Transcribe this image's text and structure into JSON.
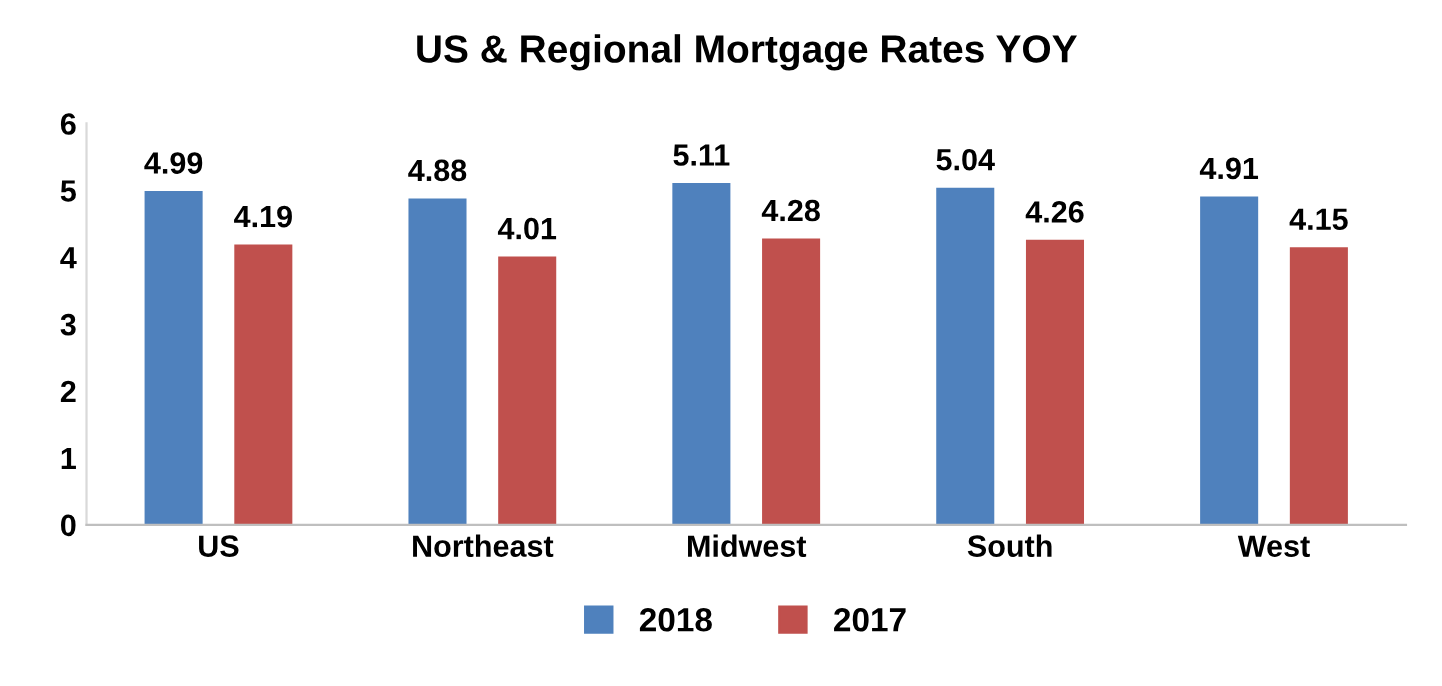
{
  "chart_data": {
    "type": "bar",
    "title": "US & Regional Mortgage Rates YOY",
    "categories": [
      "US",
      "Northeast",
      "Midwest",
      "South",
      "West"
    ],
    "series": [
      {
        "name": "2018",
        "color": "#4f81bd",
        "values": [
          4.99,
          4.88,
          5.11,
          5.04,
          4.91
        ]
      },
      {
        "name": "2017",
        "color": "#c0504d",
        "values": [
          4.19,
          4.01,
          4.28,
          4.26,
          4.15
        ]
      }
    ],
    "ylim": [
      0,
      6
    ],
    "yticks": [
      0,
      1,
      2,
      3,
      4,
      5,
      6
    ],
    "grid": false,
    "legend": "bottom",
    "data_labels": true
  }
}
